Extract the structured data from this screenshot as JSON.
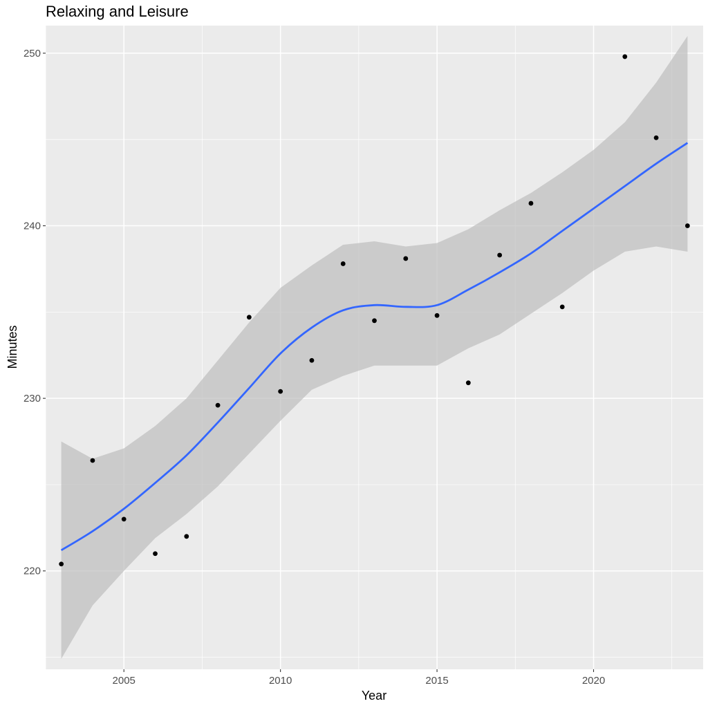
{
  "chart_data": {
    "type": "scatter",
    "title": "Relaxing and Leisure",
    "xlabel": "Year",
    "ylabel": "Minutes",
    "xlim": [
      2002.5,
      2023.5
    ],
    "ylim": [
      214.3,
      251.6
    ],
    "x_ticks": [
      2005,
      2010,
      2015,
      2020
    ],
    "x_minor_ticks": [
      2002.5,
      2007.5,
      2012.5,
      2017.5,
      2022.5
    ],
    "y_ticks": [
      220,
      230,
      240,
      250
    ],
    "y_minor_ticks": [
      215,
      225,
      235,
      245
    ],
    "grid": true,
    "colors": {
      "panel": "#ebebeb",
      "grid": "#ffffff",
      "points": "#000000",
      "smooth": "#3366ff",
      "ribbon": "#bdbdbd"
    },
    "points": {
      "x": [
        2003,
        2004,
        2005,
        2006,
        2007,
        2008,
        2009,
        2010,
        2011,
        2012,
        2013,
        2014,
        2015,
        2016,
        2017,
        2018,
        2019,
        2021,
        2022,
        2023
      ],
      "y": [
        220.4,
        226.4,
        223.0,
        221.0,
        222.0,
        229.6,
        234.7,
        230.4,
        232.2,
        237.8,
        234.5,
        238.1,
        234.8,
        230.9,
        238.3,
        241.3,
        235.3,
        249.8,
        245.1,
        240.0
      ]
    },
    "smooth": {
      "x": [
        2003,
        2004,
        2005,
        2006,
        2007,
        2008,
        2009,
        2010,
        2011,
        2012,
        2013,
        2014,
        2015,
        2016,
        2017,
        2018,
        2019,
        2020,
        2021,
        2022,
        2023
      ],
      "y": [
        221.2,
        222.3,
        223.6,
        225.1,
        226.7,
        228.6,
        230.6,
        232.6,
        234.1,
        235.1,
        235.4,
        235.3,
        235.4,
        236.3,
        237.3,
        238.4,
        239.7,
        241.0,
        242.3,
        243.6,
        244.8
      ],
      "lower": [
        214.9,
        218.0,
        220.0,
        221.9,
        223.3,
        224.9,
        226.8,
        228.7,
        230.5,
        231.3,
        231.9,
        231.9,
        231.9,
        232.9,
        233.7,
        234.9,
        236.1,
        237.4,
        238.5,
        238.8,
        238.5
      ],
      "upper": [
        227.5,
        226.5,
        227.1,
        228.4,
        230.0,
        232.2,
        234.4,
        236.4,
        237.7,
        238.9,
        239.1,
        238.8,
        239.0,
        239.8,
        240.9,
        241.9,
        243.1,
        244.4,
        246.0,
        248.3,
        251.0
      ]
    }
  }
}
